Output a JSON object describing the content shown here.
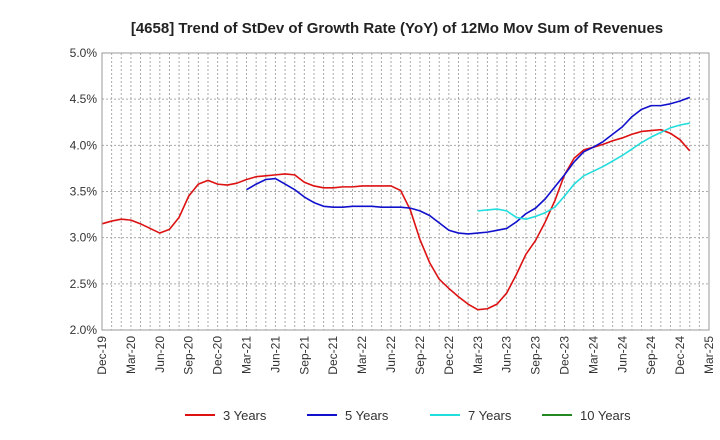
{
  "chart_data": {
    "type": "line",
    "title": "[4658]  Trend of StDev of Growth Rate (YoY) of 12Mo Mov Sum of Revenues",
    "xlabel": "",
    "ylabel": "",
    "ylim": [
      2.0,
      5.0
    ],
    "y_ticks": [
      "2.0%",
      "2.5%",
      "3.0%",
      "3.5%",
      "4.0%",
      "4.5%",
      "5.0%"
    ],
    "y_tick_values": [
      2.0,
      2.5,
      3.0,
      3.5,
      4.0,
      4.5,
      5.0
    ],
    "x_ticks": [
      "Dec-19",
      "Mar-20",
      "Jun-20",
      "Sep-20",
      "Dec-20",
      "Mar-21",
      "Jun-21",
      "Sep-21",
      "Dec-21",
      "Mar-22",
      "Jun-22",
      "Sep-22",
      "Dec-22",
      "Mar-23",
      "Jun-23",
      "Sep-23",
      "Dec-23",
      "Mar-24",
      "Jun-24",
      "Sep-24",
      "Dec-24",
      "Mar-25"
    ],
    "x_months": [
      "Dec-19",
      "Jan-20",
      "Feb-20",
      "Mar-20",
      "Apr-20",
      "May-20",
      "Jun-20",
      "Jul-20",
      "Aug-20",
      "Sep-20",
      "Oct-20",
      "Nov-20",
      "Dec-20",
      "Jan-21",
      "Feb-21",
      "Mar-21",
      "Apr-21",
      "May-21",
      "Jun-21",
      "Jul-21",
      "Aug-21",
      "Sep-21",
      "Oct-21",
      "Nov-21",
      "Dec-21",
      "Jan-22",
      "Feb-22",
      "Mar-22",
      "Apr-22",
      "May-22",
      "Jun-22",
      "Jul-22",
      "Aug-22",
      "Sep-22",
      "Oct-22",
      "Nov-22",
      "Dec-22",
      "Jan-23",
      "Feb-23",
      "Mar-23",
      "Apr-23",
      "May-23",
      "Jun-23",
      "Jul-23",
      "Aug-23",
      "Sep-23",
      "Oct-23",
      "Nov-23",
      "Dec-23",
      "Jan-24",
      "Feb-24",
      "Mar-24",
      "Apr-24",
      "May-24",
      "Jun-24",
      "Jul-24",
      "Aug-24",
      "Sep-24",
      "Oct-24",
      "Nov-24",
      "Dec-24",
      "Jan-25",
      "Feb-25",
      "Mar-25"
    ],
    "grid": true,
    "legend_position": "bottom",
    "series": [
      {
        "name": "3 Years",
        "color": "#dd1111",
        "values": [
          3.15,
          3.18,
          3.2,
          3.19,
          3.15,
          3.1,
          3.05,
          3.09,
          3.22,
          3.45,
          3.58,
          3.62,
          3.58,
          3.57,
          3.59,
          3.63,
          3.66,
          3.67,
          3.68,
          3.69,
          3.68,
          3.6,
          3.56,
          3.54,
          3.54,
          3.55,
          3.55,
          3.56,
          3.56,
          3.56,
          3.56,
          3.51,
          3.3,
          2.98,
          2.73,
          2.55,
          2.45,
          2.36,
          2.28,
          2.22,
          2.23,
          2.28,
          2.4,
          2.6,
          2.82,
          2.97,
          3.17,
          3.4,
          3.68,
          3.86,
          3.95,
          3.98,
          4.01,
          4.05,
          4.08,
          4.12,
          4.15,
          4.16,
          4.17,
          4.13,
          4.06,
          3.94,
          null,
          null
        ]
      },
      {
        "name": "5 Years",
        "color": "#1111cc",
        "values": [
          null,
          null,
          null,
          null,
          null,
          null,
          null,
          null,
          null,
          null,
          null,
          null,
          null,
          null,
          null,
          3.52,
          3.58,
          3.63,
          3.64,
          3.58,
          3.52,
          3.44,
          3.38,
          3.34,
          3.33,
          3.33,
          3.34,
          3.34,
          3.34,
          3.33,
          3.33,
          3.33,
          3.32,
          3.29,
          3.24,
          3.16,
          3.08,
          3.05,
          3.04,
          3.05,
          3.06,
          3.08,
          3.1,
          3.17,
          3.26,
          3.32,
          3.42,
          3.55,
          3.68,
          3.82,
          3.93,
          3.98,
          4.04,
          4.12,
          4.2,
          4.31,
          4.39,
          4.43,
          4.43,
          4.45,
          4.48,
          4.52,
          null,
          null
        ]
      },
      {
        "name": "7 Years",
        "color": "#22dddd",
        "values": [
          null,
          null,
          null,
          null,
          null,
          null,
          null,
          null,
          null,
          null,
          null,
          null,
          null,
          null,
          null,
          null,
          null,
          null,
          null,
          null,
          null,
          null,
          null,
          null,
          null,
          null,
          null,
          null,
          null,
          null,
          null,
          null,
          null,
          null,
          null,
          null,
          null,
          null,
          null,
          3.29,
          3.3,
          3.31,
          3.29,
          3.22,
          3.2,
          3.23,
          3.27,
          3.33,
          3.45,
          3.58,
          3.67,
          3.72,
          3.77,
          3.83,
          3.89,
          3.96,
          4.03,
          4.09,
          4.14,
          4.19,
          4.22,
          4.24,
          null,
          null
        ]
      },
      {
        "name": "10 Years",
        "color": "#228822",
        "values": []
      }
    ]
  }
}
